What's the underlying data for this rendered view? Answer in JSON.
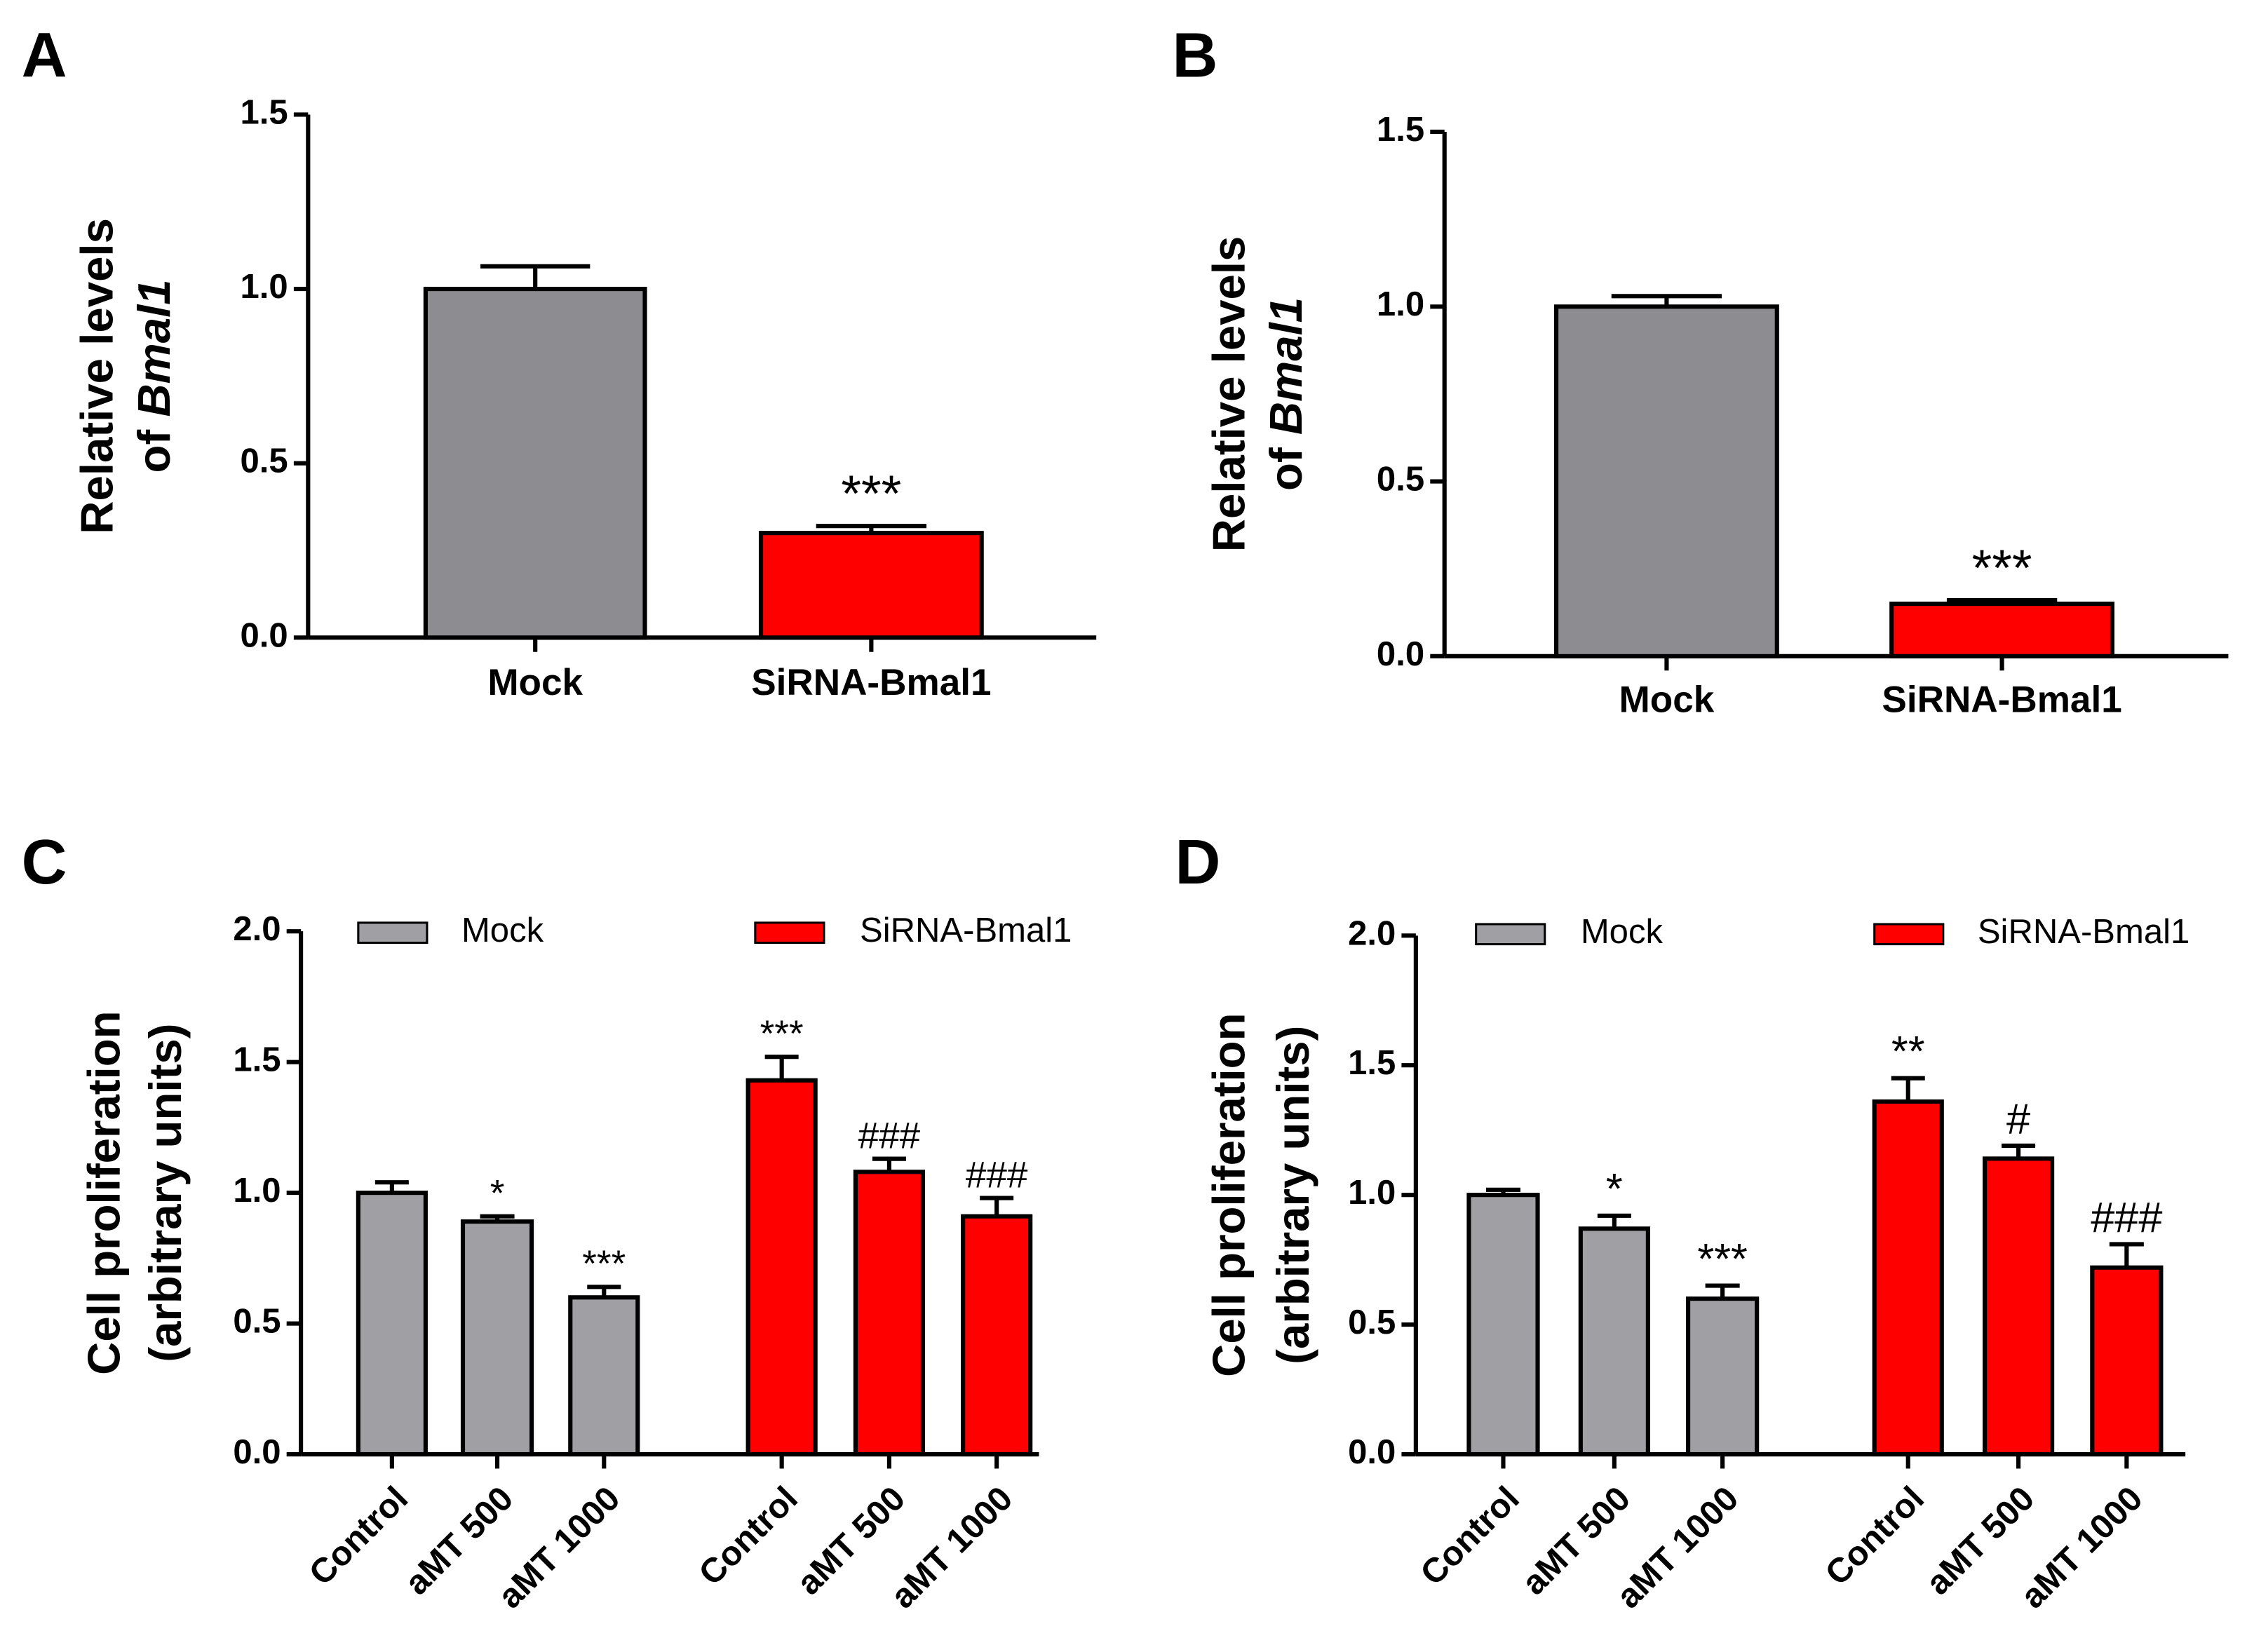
{
  "chart_data": [
    {
      "type": "bar",
      "panel": "A",
      "ylabel": {
        "line1": "Relative levels",
        "line2": "of",
        "line2_italic": "Bmal1"
      },
      "categories": [
        "Mock",
        "SiRNA-Bmal1"
      ],
      "values": [
        1.0,
        0.3
      ],
      "errors": [
        0.065,
        0.02
      ],
      "colors": [
        "#8c8c91",
        "#ff0000"
      ],
      "annotations": [
        null,
        "***"
      ],
      "ylim": [
        0,
        1.5
      ],
      "yticks": [
        {
          "value": 0,
          "label": "0.0"
        },
        {
          "value": 0.5,
          "label": "0.5"
        },
        {
          "value": 1,
          "label": "1.0"
        },
        {
          "value": 1.5,
          "label": "1.5"
        }
      ]
    },
    {
      "type": "bar",
      "panel": "B",
      "ylabel": {
        "line1": "Relative levels",
        "line2": "of",
        "line2_italic": "Bmal1"
      },
      "categories": [
        "Mock",
        "SiRNA-Bmal1"
      ],
      "values": [
        1.0,
        0.15
      ],
      "errors": [
        0.03,
        0.01
      ],
      "colors": [
        "#8c8c91",
        "#ff0000"
      ],
      "annotations": [
        null,
        "***"
      ],
      "ylim": [
        0,
        1.5
      ],
      "yticks": [
        {
          "value": 0,
          "label": "0.0"
        },
        {
          "value": 0.5,
          "label": "0.5"
        },
        {
          "value": 1,
          "label": "1.0"
        },
        {
          "value": 1.5,
          "label": "1.5"
        }
      ]
    },
    {
      "type": "grouped_bar",
      "panel": "C",
      "ylabel": {
        "line1": "Cell proliferation",
        "line2": "(arbitrary units)"
      },
      "categories": [
        "Control",
        "aMT 500",
        "aMT 1000"
      ],
      "series": [
        {
          "name": "Mock",
          "color": "#a0a0a4",
          "values": [
            1.0,
            0.89,
            0.6
          ],
          "errors": [
            0.04,
            0.02,
            0.04
          ],
          "annotations": [
            null,
            "*",
            "***"
          ]
        },
        {
          "name": "SiRNA-Bmal1",
          "color": "#ff0000",
          "values": [
            1.43,
            1.08,
            0.91
          ],
          "errors": [
            0.09,
            0.05,
            0.07
          ],
          "annotations": [
            "***",
            "###",
            "###"
          ]
        }
      ],
      "ylim": [
        0,
        2
      ],
      "yticks": [
        {
          "value": 0,
          "label": "0.0"
        },
        {
          "value": 0.5,
          "label": "0.5"
        },
        {
          "value": 1,
          "label": "1.0"
        },
        {
          "value": 1.5,
          "label": "1.5"
        },
        {
          "value": 2,
          "label": "2.0"
        }
      ]
    },
    {
      "type": "grouped_bar",
      "panel": "D",
      "ylabel": {
        "line1": "Cell proliferation",
        "line2": "(arbitrary units)"
      },
      "categories": [
        "Control",
        "aMT 500",
        "aMT 1000"
      ],
      "series": [
        {
          "name": "Mock",
          "color": "#a0a0a4",
          "values": [
            1.0,
            0.87,
            0.6
          ],
          "errors": [
            0.02,
            0.05,
            0.05
          ],
          "annotations": [
            null,
            "*",
            "***"
          ]
        },
        {
          "name": "SiRNA-Bmal1",
          "color": "#ff0000",
          "values": [
            1.36,
            1.14,
            0.72
          ],
          "errors": [
            0.09,
            0.05,
            0.09
          ],
          "annotations": [
            "**",
            "#",
            "###"
          ]
        }
      ],
      "ylim": [
        0,
        2
      ],
      "yticks": [
        {
          "value": 0,
          "label": "0.0"
        },
        {
          "value": 0.5,
          "label": "0.5"
        },
        {
          "value": 1,
          "label": "1.0"
        },
        {
          "value": 1.5,
          "label": "1.5"
        },
        {
          "value": 2,
          "label": "2.0"
        }
      ]
    }
  ]
}
